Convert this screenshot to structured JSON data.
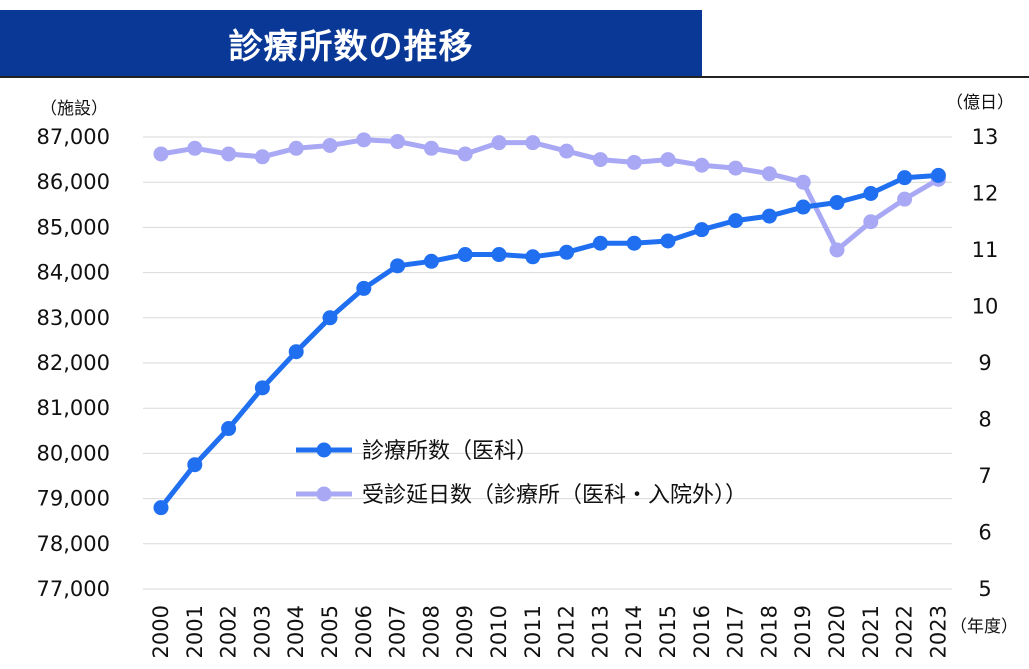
{
  "title": "診療所数の推移",
  "colors": {
    "title_band": "#0a3896",
    "series_1": "#1f6ff0",
    "series_2": "#a8a8f5"
  },
  "chart_data": {
    "type": "line",
    "title": "診療所数の推移",
    "x": [
      "2000",
      "2001",
      "2002",
      "2003",
      "2004",
      "2005",
      "2006",
      "2007",
      "2008",
      "2009",
      "2010",
      "2011",
      "2012",
      "2013",
      "2014",
      "2015",
      "2016",
      "2017",
      "2018",
      "2019",
      "2020",
      "2021",
      "2022",
      "2023"
    ],
    "xlabel": "（年度）",
    "left_axis": {
      "unit": "（施設）",
      "ylim": [
        77000,
        87000
      ],
      "ticks": [
        87000,
        86000,
        85000,
        84000,
        83000,
        82000,
        81000,
        80000,
        79000,
        78000,
        77000
      ],
      "tick_labels": [
        "87,000",
        "86,000",
        "85,000",
        "84,000",
        "83,000",
        "82,000",
        "81,000",
        "80,000",
        "79,000",
        "78,000",
        "77,000"
      ]
    },
    "right_axis": {
      "unit": "（億日）",
      "ylim": [
        5,
        13
      ],
      "ticks": [
        13,
        12,
        11,
        10,
        9,
        8,
        7,
        6,
        5
      ],
      "tick_labels": [
        "13",
        "12",
        "11",
        "10",
        "9",
        "8",
        "7",
        "6",
        "5"
      ]
    },
    "grid": true,
    "legend_position": "center-left",
    "series": [
      {
        "name": "診療所数（医科）",
        "axis": "left",
        "values": [
          78800,
          79750,
          80550,
          81450,
          82250,
          83000,
          83650,
          84150,
          84250,
          84400,
          84400,
          84350,
          84450,
          84650,
          84650,
          84700,
          84950,
          85150,
          85250,
          85450,
          85550,
          85750,
          86100,
          86150
        ]
      },
      {
        "name": "受診延日数（診療所（医科・入院外））",
        "axis": "right",
        "values": [
          12.7,
          12.8,
          12.7,
          12.65,
          12.8,
          12.85,
          12.95,
          12.92,
          12.8,
          12.7,
          12.9,
          12.9,
          12.75,
          12.6,
          12.55,
          12.6,
          12.5,
          12.45,
          12.35,
          12.2,
          11.0,
          11.5,
          11.9,
          12.25
        ]
      }
    ]
  }
}
